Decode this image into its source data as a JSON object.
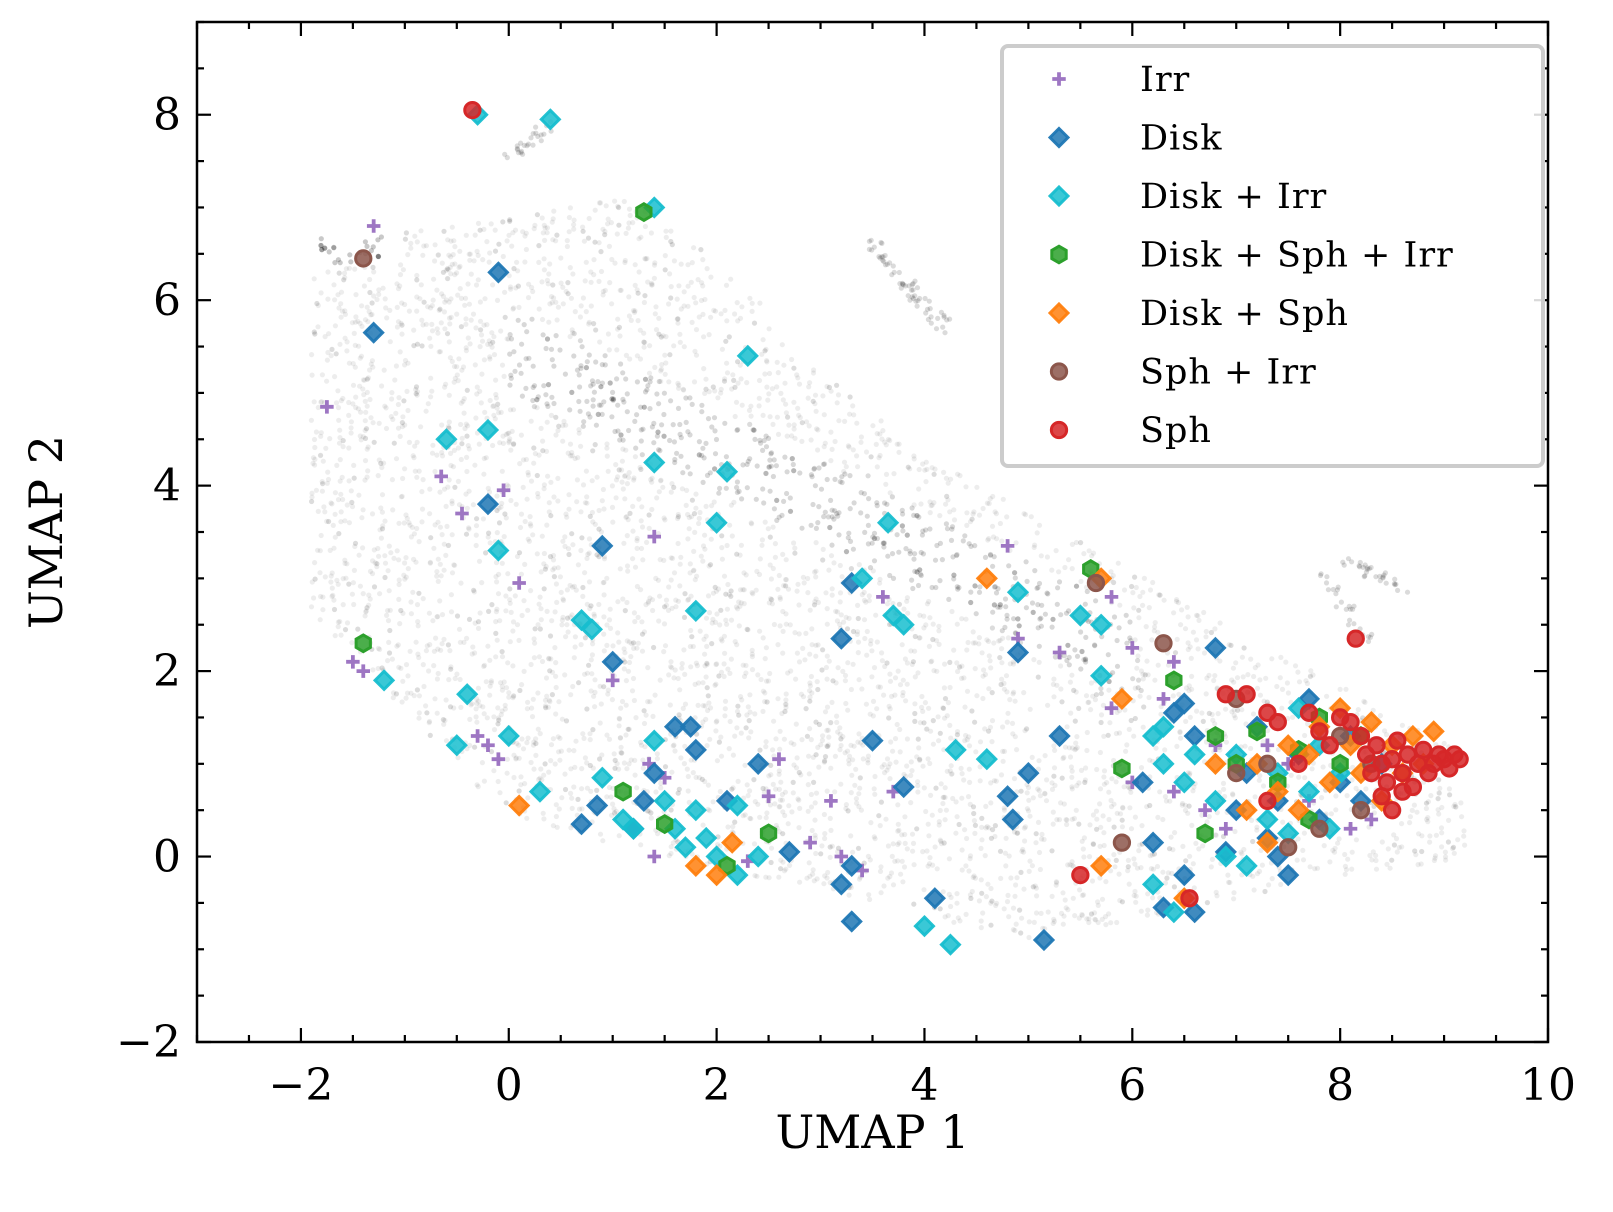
{
  "chart_data": {
    "type": "scatter",
    "title": "",
    "xlabel": "UMAP 1",
    "ylabel": "UMAP 2",
    "xlim": [
      -3,
      10
    ],
    "ylim": [
      -2,
      9
    ],
    "xticks": [
      -2,
      0,
      2,
      4,
      6,
      8,
      10
    ],
    "yticks": [
      -2,
      0,
      2,
      4,
      6,
      8
    ],
    "xtick_labels": [
      "−2",
      "0",
      "2",
      "4",
      "6",
      "8",
      "10"
    ],
    "ytick_labels": [
      "−2",
      "0",
      "2",
      "4",
      "6",
      "8"
    ],
    "grid": false,
    "legend_position": "top-right",
    "background_cloud": {
      "color": "#000000",
      "opacity": 0.07,
      "description_region": "dense unlabeled background points spanning x -1.9 to 9.2, y -1 to 7.5"
    },
    "series": [
      {
        "name": "Irr",
        "marker": "plus",
        "color": "#9467bd",
        "points": [
          [
            -1.3,
            6.8
          ],
          [
            -1.75,
            4.85
          ],
          [
            -0.65,
            4.1
          ],
          [
            -0.45,
            3.7
          ],
          [
            -0.05,
            3.95
          ],
          [
            0.1,
            2.95
          ],
          [
            -1.5,
            2.1
          ],
          [
            -1.4,
            2.0
          ],
          [
            -0.3,
            1.3
          ],
          [
            -0.2,
            1.2
          ],
          [
            -0.1,
            1.05
          ],
          [
            1.4,
            3.45
          ],
          [
            1.0,
            1.9
          ],
          [
            1.35,
            1.0
          ],
          [
            1.5,
            0.85
          ],
          [
            1.4,
            0.0
          ],
          [
            2.6,
            1.05
          ],
          [
            2.5,
            0.65
          ],
          [
            2.9,
            0.15
          ],
          [
            3.1,
            0.6
          ],
          [
            3.2,
            0.0
          ],
          [
            3.4,
            -0.15
          ],
          [
            2.3,
            -0.05
          ],
          [
            3.6,
            2.8
          ],
          [
            3.7,
            0.7
          ],
          [
            4.8,
            3.35
          ],
          [
            4.9,
            2.35
          ],
          [
            5.3,
            2.2
          ],
          [
            5.8,
            2.8
          ],
          [
            5.8,
            1.6
          ],
          [
            6.0,
            2.25
          ],
          [
            6.3,
            1.7
          ],
          [
            6.4,
            2.1
          ],
          [
            6.0,
            0.8
          ],
          [
            6.4,
            0.7
          ],
          [
            6.7,
            0.5
          ],
          [
            6.8,
            1.2
          ],
          [
            6.9,
            0.3
          ],
          [
            7.3,
            1.2
          ],
          [
            7.5,
            1.0
          ],
          [
            7.7,
            0.6
          ],
          [
            8.1,
            0.3
          ],
          [
            8.3,
            0.4
          ]
        ]
      },
      {
        "name": "Disk",
        "marker": "diamond",
        "color": "#1f77b4",
        "points": [
          [
            -1.3,
            5.65
          ],
          [
            -0.2,
            3.8
          ],
          [
            -0.1,
            6.3
          ],
          [
            0.9,
            3.35
          ],
          [
            1.0,
            2.1
          ],
          [
            0.7,
            0.35
          ],
          [
            0.85,
            0.55
          ],
          [
            1.2,
            0.3
          ],
          [
            1.3,
            0.6
          ],
          [
            1.4,
            0.9
          ],
          [
            1.6,
            1.4
          ],
          [
            1.75,
            1.4
          ],
          [
            1.8,
            1.15
          ],
          [
            2.1,
            0.6
          ],
          [
            2.4,
            1.0
          ],
          [
            2.7,
            0.05
          ],
          [
            3.2,
            2.35
          ],
          [
            3.3,
            2.95
          ],
          [
            3.5,
            1.25
          ],
          [
            3.8,
            0.75
          ],
          [
            3.2,
            -0.3
          ],
          [
            3.3,
            -0.7
          ],
          [
            3.3,
            -0.1
          ],
          [
            4.1,
            -0.45
          ],
          [
            4.8,
            0.65
          ],
          [
            4.85,
            0.4
          ],
          [
            5.0,
            0.9
          ],
          [
            4.9,
            2.2
          ],
          [
            5.3,
            1.3
          ],
          [
            5.15,
            -0.9
          ],
          [
            6.1,
            0.8
          ],
          [
            6.2,
            0.15
          ],
          [
            6.3,
            -0.55
          ],
          [
            6.4,
            1.55
          ],
          [
            6.5,
            1.65
          ],
          [
            6.5,
            -0.2
          ],
          [
            6.6,
            -0.6
          ],
          [
            6.6,
            1.3
          ],
          [
            6.8,
            2.25
          ],
          [
            6.9,
            0.05
          ],
          [
            7.0,
            0.5
          ],
          [
            7.1,
            0.9
          ],
          [
            7.2,
            1.4
          ],
          [
            7.3,
            0.2
          ],
          [
            7.4,
            0.6
          ],
          [
            7.5,
            -0.2
          ],
          [
            7.6,
            1.1
          ],
          [
            7.7,
            1.7
          ],
          [
            7.8,
            0.4
          ],
          [
            8.0,
            0.8
          ],
          [
            8.1,
            1.3
          ],
          [
            8.2,
            0.6
          ],
          [
            8.4,
            1.0
          ],
          [
            7.4,
            0.0
          ]
        ]
      },
      {
        "name": "Disk + Irr",
        "marker": "diamond",
        "color": "#17becf",
        "points": [
          [
            -0.3,
            8.0
          ],
          [
            0.4,
            7.95
          ],
          [
            1.4,
            7.0
          ],
          [
            2.3,
            5.4
          ],
          [
            -0.6,
            4.5
          ],
          [
            -0.2,
            4.6
          ],
          [
            1.4,
            4.25
          ],
          [
            2.1,
            4.15
          ],
          [
            2.0,
            3.6
          ],
          [
            -0.1,
            3.3
          ],
          [
            0.7,
            2.55
          ],
          [
            0.8,
            2.45
          ],
          [
            1.8,
            2.65
          ],
          [
            -1.2,
            1.9
          ],
          [
            -0.4,
            1.75
          ],
          [
            -0.5,
            1.2
          ],
          [
            0.0,
            1.3
          ],
          [
            0.3,
            0.7
          ],
          [
            0.9,
            0.85
          ],
          [
            1.1,
            0.4
          ],
          [
            1.2,
            0.3
          ],
          [
            1.4,
            1.25
          ],
          [
            1.5,
            0.6
          ],
          [
            1.6,
            0.3
          ],
          [
            1.7,
            0.1
          ],
          [
            1.8,
            0.5
          ],
          [
            1.9,
            0.2
          ],
          [
            2.0,
            0.0
          ],
          [
            2.2,
            -0.2
          ],
          [
            2.2,
            0.55
          ],
          [
            2.4,
            0.0
          ],
          [
            3.4,
            3.0
          ],
          [
            3.65,
            3.6
          ],
          [
            3.7,
            2.6
          ],
          [
            3.8,
            2.5
          ],
          [
            4.3,
            1.15
          ],
          [
            4.6,
            1.05
          ],
          [
            4.0,
            -0.75
          ],
          [
            4.25,
            -0.95
          ],
          [
            4.9,
            2.85
          ],
          [
            5.5,
            2.6
          ],
          [
            5.7,
            2.5
          ],
          [
            5.7,
            1.95
          ],
          [
            6.2,
            1.3
          ],
          [
            6.3,
            1.0
          ],
          [
            6.2,
            -0.3
          ],
          [
            6.4,
            -0.6
          ],
          [
            6.5,
            0.8
          ],
          [
            6.6,
            1.1
          ],
          [
            6.8,
            0.6
          ],
          [
            6.9,
            0.0
          ],
          [
            7.0,
            1.1
          ],
          [
            7.1,
            -0.1
          ],
          [
            7.3,
            0.4
          ],
          [
            7.4,
            0.9
          ],
          [
            7.5,
            0.25
          ],
          [
            7.6,
            1.6
          ],
          [
            7.7,
            0.7
          ],
          [
            7.8,
            1.2
          ],
          [
            7.9,
            0.3
          ],
          [
            8.0,
            0.9
          ],
          [
            6.3,
            1.4
          ]
        ]
      },
      {
        "name": "Disk + Sph + Irr",
        "marker": "hexagon",
        "color": "#2ca02c",
        "points": [
          [
            1.3,
            6.95
          ],
          [
            -1.4,
            2.3
          ],
          [
            1.1,
            0.7
          ],
          [
            1.5,
            0.35
          ],
          [
            2.1,
            -0.1
          ],
          [
            2.5,
            0.25
          ],
          [
            5.6,
            3.1
          ],
          [
            5.9,
            0.95
          ],
          [
            6.4,
            1.9
          ],
          [
            6.7,
            0.25
          ],
          [
            6.8,
            1.3
          ],
          [
            7.0,
            1.0
          ],
          [
            7.2,
            1.35
          ],
          [
            7.4,
            0.8
          ],
          [
            7.6,
            1.15
          ],
          [
            7.8,
            1.5
          ],
          [
            8.0,
            1.0
          ],
          [
            8.2,
            1.3
          ],
          [
            7.7,
            0.4
          ]
        ]
      },
      {
        "name": "Disk + Sph",
        "marker": "diamond",
        "color": "#ff7f0e",
        "points": [
          [
            0.1,
            0.55
          ],
          [
            1.8,
            -0.1
          ],
          [
            2.0,
            -0.2
          ],
          [
            2.15,
            0.15
          ],
          [
            4.6,
            3.0
          ],
          [
            5.7,
            3.0
          ],
          [
            5.7,
            -0.1
          ],
          [
            5.9,
            1.7
          ],
          [
            6.5,
            -0.45
          ],
          [
            6.8,
            1.0
          ],
          [
            7.1,
            0.5
          ],
          [
            7.2,
            1.0
          ],
          [
            7.3,
            0.15
          ],
          [
            7.4,
            0.7
          ],
          [
            7.5,
            1.2
          ],
          [
            7.6,
            0.5
          ],
          [
            7.7,
            1.1
          ],
          [
            7.8,
            1.4
          ],
          [
            7.9,
            0.8
          ],
          [
            8.0,
            1.6
          ],
          [
            8.1,
            1.2
          ],
          [
            8.2,
            0.9
          ],
          [
            8.3,
            1.45
          ],
          [
            8.4,
            0.6
          ],
          [
            8.5,
            1.2
          ],
          [
            8.6,
            0.9
          ],
          [
            8.7,
            1.3
          ],
          [
            8.8,
            1.0
          ],
          [
            8.9,
            1.35
          ]
        ]
      },
      {
        "name": "Sph + Irr",
        "marker": "circle",
        "color": "#8c564b",
        "points": [
          [
            -1.4,
            6.45
          ],
          [
            5.65,
            2.95
          ],
          [
            6.3,
            2.3
          ],
          [
            5.9,
            0.15
          ],
          [
            7.0,
            1.7
          ],
          [
            7.0,
            0.9
          ],
          [
            7.3,
            1.0
          ],
          [
            7.5,
            0.1
          ],
          [
            7.8,
            0.3
          ],
          [
            8.0,
            1.3
          ],
          [
            8.2,
            0.5
          ],
          [
            8.3,
            1.0
          ]
        ]
      },
      {
        "name": "Sph",
        "marker": "circle",
        "color": "#d62728",
        "points": [
          [
            -0.35,
            8.05
          ],
          [
            8.15,
            2.35
          ],
          [
            5.5,
            -0.2
          ],
          [
            6.55,
            -0.45
          ],
          [
            6.9,
            1.75
          ],
          [
            7.1,
            1.75
          ],
          [
            7.3,
            1.55
          ],
          [
            7.4,
            1.45
          ],
          [
            7.6,
            1.0
          ],
          [
            7.7,
            1.55
          ],
          [
            7.8,
            1.35
          ],
          [
            7.9,
            1.2
          ],
          [
            8.0,
            1.5
          ],
          [
            8.1,
            1.45
          ],
          [
            8.2,
            1.3
          ],
          [
            8.25,
            1.1
          ],
          [
            8.3,
            0.9
          ],
          [
            8.35,
            1.2
          ],
          [
            8.4,
            1.0
          ],
          [
            8.45,
            0.8
          ],
          [
            8.5,
            1.05
          ],
          [
            8.55,
            1.25
          ],
          [
            8.6,
            0.9
          ],
          [
            8.65,
            1.1
          ],
          [
            8.7,
            0.75
          ],
          [
            8.75,
            1.0
          ],
          [
            8.8,
            1.15
          ],
          [
            8.85,
            0.9
          ],
          [
            8.9,
            1.0
          ],
          [
            8.95,
            1.1
          ],
          [
            9.0,
            1.05
          ],
          [
            9.05,
            0.95
          ],
          [
            9.1,
            1.1
          ],
          [
            9.15,
            1.05
          ],
          [
            8.5,
            0.5
          ],
          [
            8.6,
            0.7
          ],
          [
            8.4,
            0.65
          ],
          [
            7.3,
            0.6
          ]
        ]
      }
    ]
  }
}
